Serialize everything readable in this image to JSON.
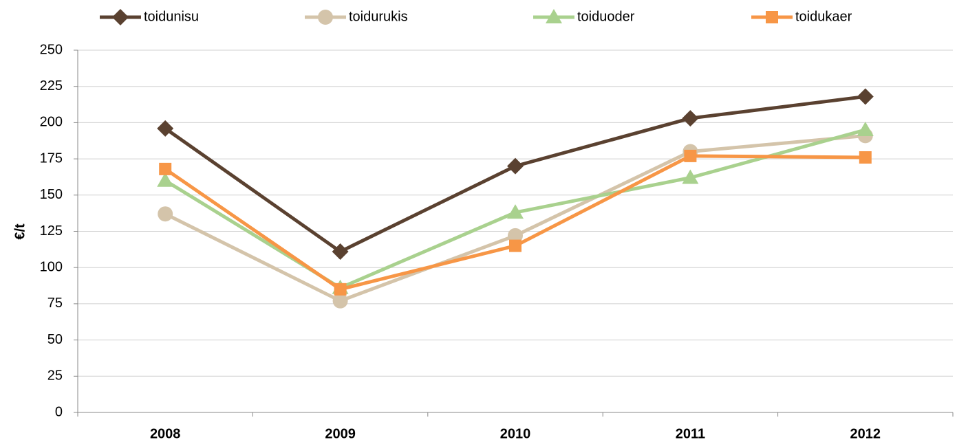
{
  "chart_data": {
    "type": "line",
    "categories": [
      "2008",
      "2009",
      "2010",
      "2011",
      "2012"
    ],
    "y_label": "€/t",
    "series": [
      {
        "name": "toidunisu",
        "color": "#5a4130",
        "marker": "diamond",
        "values": [
          196,
          111,
          170,
          203,
          218
        ]
      },
      {
        "name": "toidurukis",
        "color": "#d4c4aa",
        "marker": "circle",
        "values": [
          137,
          77,
          122,
          180,
          191
        ]
      },
      {
        "name": "toiduoder",
        "color": "#a9d18e",
        "marker": "triangle",
        "values": [
          160,
          86,
          138,
          162,
          195
        ]
      },
      {
        "name": "toidukaer",
        "color": "#f79646",
        "marker": "square",
        "values": [
          168,
          85,
          115,
          177,
          176
        ]
      }
    ],
    "ylim": [
      0,
      250
    ],
    "yticks": [
      0,
      25,
      50,
      75,
      100,
      125,
      150,
      175,
      200,
      225,
      250
    ],
    "grid": true,
    "legend": "top"
  }
}
